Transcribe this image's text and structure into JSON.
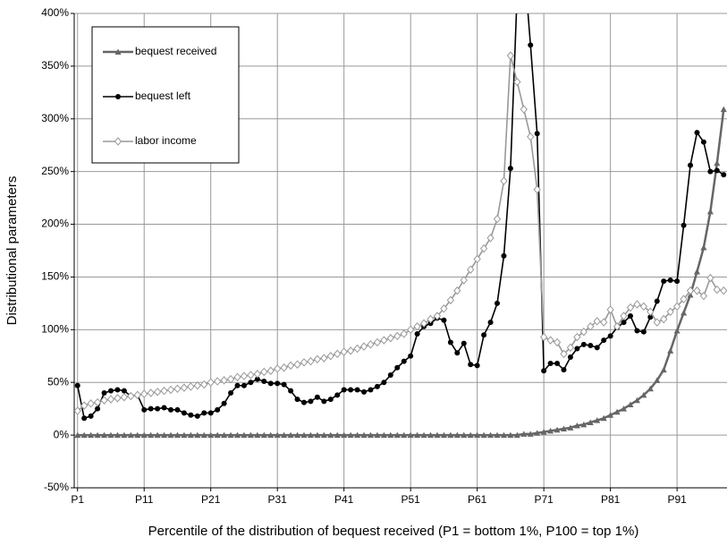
{
  "chart_data": {
    "type": "line",
    "xlabel": "Percentile of the distribution of bequest received (P1 = bottom 1%, P100 = top 1%)",
    "ylabel": "Distributional parameters",
    "x": [
      1,
      2,
      3,
      4,
      5,
      6,
      7,
      8,
      9,
      10,
      11,
      12,
      13,
      14,
      15,
      16,
      17,
      18,
      19,
      20,
      21,
      22,
      23,
      24,
      25,
      26,
      27,
      28,
      29,
      30,
      31,
      32,
      33,
      34,
      35,
      36,
      37,
      38,
      39,
      40,
      41,
      42,
      43,
      44,
      45,
      46,
      47,
      48,
      49,
      50,
      51,
      52,
      53,
      54,
      55,
      56,
      57,
      58,
      59,
      60,
      61,
      62,
      63,
      64,
      65,
      66,
      67,
      68,
      69,
      70,
      71,
      72,
      73,
      74,
      75,
      76,
      77,
      78,
      79,
      80,
      81,
      82,
      83,
      84,
      85,
      86,
      87,
      88,
      89,
      90,
      91,
      92,
      93,
      94,
      95,
      96,
      97,
      98
    ],
    "series": [
      {
        "name": "bequest received",
        "color": "#666666",
        "marker": "triangle",
        "values": [
          0,
          0,
          0,
          0,
          0,
          0,
          0,
          0,
          0,
          0,
          0,
          0,
          0,
          0,
          0,
          0,
          0,
          0,
          0,
          0,
          0,
          0,
          0,
          0,
          0,
          0,
          0,
          0,
          0,
          0,
          0,
          0,
          0,
          0,
          0,
          0,
          0,
          0,
          0,
          0,
          0,
          0,
          0,
          0,
          0,
          0,
          0,
          0,
          0,
          0,
          0,
          0,
          0,
          0,
          0,
          0,
          0,
          0,
          0,
          0,
          0,
          0,
          0,
          0,
          0,
          0,
          0,
          1,
          1,
          2,
          3,
          4,
          5,
          6,
          7,
          9,
          10,
          12,
          14,
          16,
          19,
          22,
          25,
          29,
          33,
          38,
          44,
          52,
          62,
          80,
          99,
          116,
          133,
          155,
          178,
          212,
          258,
          309
        ]
      },
      {
        "name": "bequest left",
        "color": "#000000",
        "marker": "circle",
        "values": [
          47,
          16,
          18,
          25,
          40,
          42,
          43,
          42,
          37,
          38,
          24,
          25,
          25,
          26,
          24,
          24,
          21,
          19,
          18,
          21,
          21,
          24,
          30,
          40,
          47,
          47,
          50,
          53,
          51,
          49,
          49,
          48,
          42,
          34,
          31,
          32,
          36,
          32,
          34,
          38,
          43,
          43,
          43,
          41,
          43,
          46,
          50,
          57,
          64,
          70,
          75,
          96,
          103,
          106,
          111,
          109,
          88,
          78,
          87,
          67,
          66,
          95,
          107,
          125,
          170,
          253,
          420,
          450,
          370,
          286,
          61,
          68,
          68,
          62,
          74,
          82,
          86,
          85,
          83,
          90,
          94,
          102,
          107,
          113,
          99,
          98,
          112,
          127,
          146,
          147,
          146,
          199,
          256,
          287,
          278,
          250,
          251,
          247
        ]
      },
      {
        "name": "labor income",
        "color": "#999999",
        "marker": "diamond",
        "values": [
          23,
          28,
          30,
          31,
          33,
          34,
          35,
          36,
          37,
          38,
          39,
          40,
          41,
          42,
          43,
          44,
          45,
          46,
          47,
          48,
          50,
          51,
          52,
          53,
          55,
          56,
          57,
          58,
          60,
          61,
          63,
          64,
          66,
          67,
          69,
          70,
          72,
          73,
          75,
          77,
          79,
          80,
          82,
          84,
          86,
          88,
          90,
          92,
          94,
          96,
          100,
          103,
          106,
          110,
          113,
          120,
          128,
          137,
          147,
          157,
          167,
          177,
          187,
          205,
          241,
          360,
          335,
          309,
          283,
          233,
          93,
          90,
          88,
          77,
          83,
          93,
          98,
          103,
          108,
          107,
          119,
          103,
          113,
          121,
          124,
          122,
          117,
          107,
          110,
          117,
          122,
          129,
          137,
          137,
          132,
          149,
          138,
          137
        ]
      }
    ],
    "xlim": [
      0.5,
      98.5
    ],
    "ylim": [
      -50,
      400
    ],
    "xticks": [
      {
        "value": 1,
        "label": "P1"
      },
      {
        "value": 11,
        "label": "P11"
      },
      {
        "value": 21,
        "label": "P21"
      },
      {
        "value": 31,
        "label": "P31"
      },
      {
        "value": 41,
        "label": "P41"
      },
      {
        "value": 51,
        "label": "P51"
      },
      {
        "value": 61,
        "label": "P61"
      },
      {
        "value": 71,
        "label": "P71"
      },
      {
        "value": 81,
        "label": "P81"
      },
      {
        "value": 91,
        "label": "P91"
      }
    ],
    "yticks": [
      {
        "value": -50,
        "label": "-50%"
      },
      {
        "value": 0,
        "label": "0%"
      },
      {
        "value": 50,
        "label": "50%"
      },
      {
        "value": 100,
        "label": "100%"
      },
      {
        "value": 150,
        "label": "150%"
      },
      {
        "value": 200,
        "label": "200%"
      },
      {
        "value": 250,
        "label": "250%"
      },
      {
        "value": 300,
        "label": "300%"
      },
      {
        "value": 350,
        "label": "350%"
      },
      {
        "value": 400,
        "label": "400%"
      }
    ],
    "grid": true,
    "legend": "upper left"
  }
}
